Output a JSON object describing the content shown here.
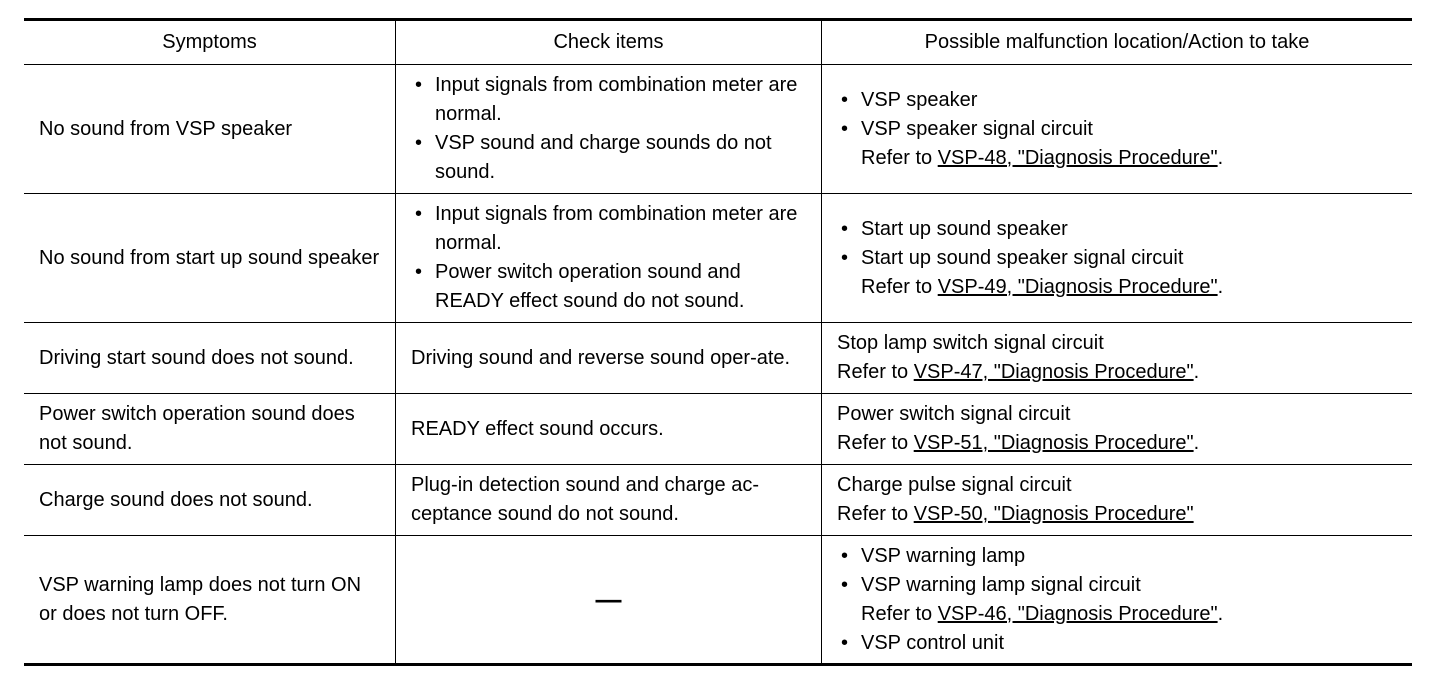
{
  "headers": [
    "Symptoms",
    "Check items",
    "Possible malfunction location/Action to take"
  ],
  "rows": [
    {
      "symptom": "No sound from VSP speaker",
      "checks": [
        "Input signals from combination meter are normal.",
        "VSP sound and charge sounds do not sound."
      ],
      "actions": [
        "VSP speaker",
        "VSP speaker signal circuit"
      ],
      "ref": {
        "prefix": "Refer to ",
        "link": "VSP-48, \"Diagnosis Procedure\"",
        "suffix": "."
      }
    },
    {
      "symptom": "No sound from start up sound speaker",
      "checks": [
        "Input signals from combination meter are normal.",
        "Power switch operation sound and READY effect sound do not sound."
      ],
      "actions": [
        "Start up sound speaker",
        "Start up sound speaker signal circuit"
      ],
      "ref": {
        "prefix": "Refer to ",
        "link": "VSP-49, \"Diagnosis Procedure\"",
        "suffix": "."
      }
    },
    {
      "symptom": "Driving start sound does not sound.",
      "check": "Driving sound and reverse sound oper-ate.",
      "action": "Stop lamp switch signal circuit",
      "ref": {
        "prefix": "Refer to ",
        "link": "VSP-47, \"Diagnosis Procedure\"",
        "suffix": "."
      }
    },
    {
      "symptom": "Power switch operation sound does not sound.",
      "check": "READY effect sound occurs.",
      "action": "Power switch signal circuit",
      "ref": {
        "prefix": "Refer to ",
        "link": "VSP-51, \"Diagnosis Procedure\"",
        "suffix": "."
      }
    },
    {
      "symptom": "Charge sound does not sound.",
      "check": "Plug-in detection sound and charge ac-ceptance sound do not sound.",
      "action": "Charge pulse signal circuit",
      "ref": {
        "prefix": "Refer to ",
        "link": "VSP-50, \"Diagnosis Procedure\"",
        "suffix": ""
      }
    },
    {
      "symptom": "VSP warning lamp does not turn ON or does not turn OFF.",
      "check": "—",
      "actions": [
        "VSP warning lamp",
        "VSP warning lamp signal circuit",
        "VSP control unit"
      ],
      "ref": {
        "prefix": "Refer to ",
        "link": "VSP-46, \"Diagnosis Procedure\"",
        "suffix": "."
      }
    }
  ]
}
